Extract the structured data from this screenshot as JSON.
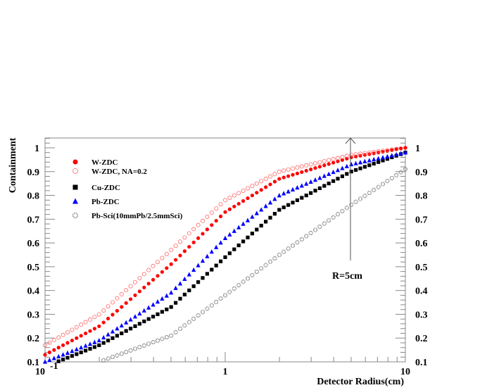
{
  "chart_data": {
    "type": "scatter",
    "title": "",
    "xlabel": "Detector Radius(cm)",
    "ylabel": "Containment",
    "xscale": "log",
    "xlim": [
      0.1,
      10
    ],
    "ylim": [
      0.1,
      1.05
    ],
    "x_tick_labels": [
      "10^-1",
      "1",
      "10"
    ],
    "y_tick_labels": [
      "0.1",
      "0.2",
      "0.3",
      "0.4",
      "0.5",
      "0.6",
      "0.7",
      "0.8",
      "0.9",
      "1"
    ],
    "legend_position": "upper-left",
    "annotations": [
      {
        "text": "R=5cm",
        "x": 5,
        "type": "vertical-arrow"
      }
    ],
    "x": [
      0.1,
      0.2,
      0.5,
      1,
      2,
      5,
      10
    ],
    "series": [
      {
        "name": "W-ZDC",
        "marker": "filled-circle",
        "color": "#ff0000",
        "values": [
          0.13,
          0.25,
          0.51,
          0.73,
          0.87,
          0.96,
          1.0
        ]
      },
      {
        "name": "W-ZDC, NA=0.2",
        "marker": "open-circle",
        "color": "#ff6666",
        "values": [
          0.17,
          0.3,
          0.57,
          0.78,
          0.9,
          0.97,
          1.0
        ]
      },
      {
        "name": "Cu-ZDC",
        "marker": "filled-square",
        "color": "#000000",
        "values": [
          0.08,
          0.17,
          0.33,
          0.54,
          0.74,
          0.9,
          0.98
        ]
      },
      {
        "name": "Pb-ZDC",
        "marker": "filled-triangle",
        "color": "#0000ff",
        "values": [
          0.1,
          0.19,
          0.39,
          0.62,
          0.8,
          0.93,
          0.98
        ]
      },
      {
        "name": "Pb-Sci(10mmPb/2.5mmSci)",
        "marker": "open-cross",
        "color": "#888888",
        "values": [
          0.06,
          0.1,
          0.21,
          0.38,
          0.55,
          0.76,
          0.91
        ]
      }
    ]
  },
  "labels": {
    "ylabel": "Containment",
    "xlabel": "Detector Radius(cm)",
    "annotation": "R=5cm",
    "xt0": "10",
    "xt0_exp": "-1",
    "xt1": "1",
    "xt2": "10",
    "legend": [
      "W-ZDC",
      "W-ZDC, NA=0.2",
      "Cu-ZDC",
      "Pb-ZDC",
      "Pb-Sci(10mmPb/2.5mmSci)"
    ]
  }
}
